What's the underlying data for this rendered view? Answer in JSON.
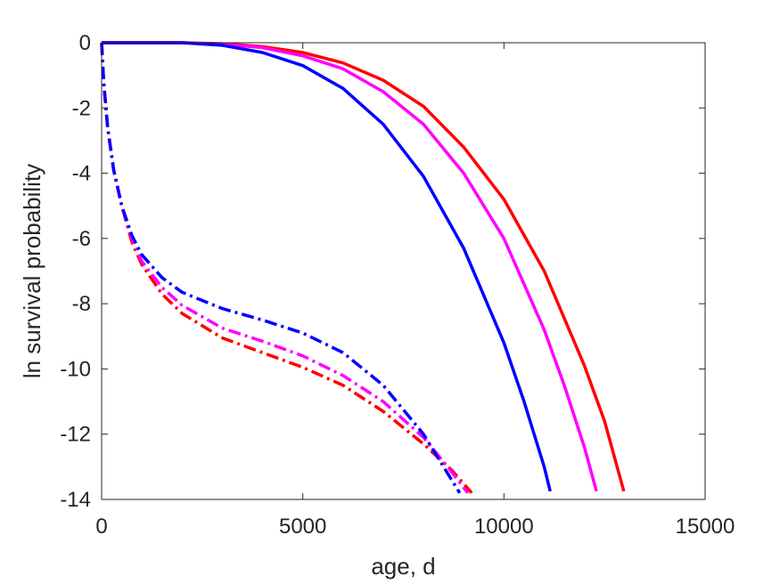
{
  "chart_data": {
    "type": "line",
    "title": "",
    "xlabel": "age, d",
    "ylabel": "ln survival probability",
    "xlim": [
      0,
      15000
    ],
    "ylim": [
      -14,
      0
    ],
    "xticks": [
      0,
      5000,
      10000,
      15000
    ],
    "yticks": [
      0,
      -2,
      -4,
      -6,
      -8,
      -10,
      -12,
      -14
    ],
    "x_tick_labels": [
      "0",
      "5000",
      "10000",
      "15000"
    ],
    "y_tick_labels": [
      "0",
      "-2",
      "-4",
      "-6",
      "-8",
      "-10",
      "-12",
      "-14"
    ],
    "grid": false,
    "legend": "none",
    "series": [
      {
        "color": "#ff0000",
        "style": "solid",
        "points": [
          [
            0,
            0
          ],
          [
            1000,
            0
          ],
          [
            2000,
            0
          ],
          [
            3000,
            -0.03
          ],
          [
            4000,
            -0.12
          ],
          [
            5000,
            -0.3
          ],
          [
            6000,
            -0.62
          ],
          [
            7000,
            -1.15
          ],
          [
            8000,
            -1.95
          ],
          [
            9000,
            -3.2
          ],
          [
            10000,
            -4.8
          ],
          [
            11000,
            -7.0
          ],
          [
            12000,
            -9.9
          ],
          [
            12500,
            -11.6
          ],
          [
            12980,
            -13.75
          ]
        ]
      },
      {
        "color": "#ff00ff",
        "style": "solid",
        "points": [
          [
            0,
            0
          ],
          [
            1000,
            0
          ],
          [
            2000,
            0
          ],
          [
            3000,
            -0.04
          ],
          [
            4000,
            -0.15
          ],
          [
            5000,
            -0.4
          ],
          [
            6000,
            -0.8
          ],
          [
            7000,
            -1.5
          ],
          [
            8000,
            -2.5
          ],
          [
            9000,
            -4.0
          ],
          [
            10000,
            -6.0
          ],
          [
            11000,
            -8.8
          ],
          [
            11500,
            -10.5
          ],
          [
            12000,
            -12.4
          ],
          [
            12300,
            -13.75
          ]
        ]
      },
      {
        "color": "#0000ff",
        "style": "solid",
        "points": [
          [
            0,
            0
          ],
          [
            1000,
            0
          ],
          [
            2000,
            0
          ],
          [
            3000,
            -0.08
          ],
          [
            4000,
            -0.3
          ],
          [
            5000,
            -0.7
          ],
          [
            6000,
            -1.4
          ],
          [
            7000,
            -2.5
          ],
          [
            8000,
            -4.1
          ],
          [
            9000,
            -6.3
          ],
          [
            10000,
            -9.2
          ],
          [
            10500,
            -11.0
          ],
          [
            11000,
            -13.0
          ],
          [
            11150,
            -13.75
          ]
        ]
      },
      {
        "color": "#ff0000",
        "style": "dashdot",
        "points": [
          [
            0,
            0
          ],
          [
            50,
            -1.2
          ],
          [
            150,
            -2.6
          ],
          [
            300,
            -3.9
          ],
          [
            500,
            -5.0
          ],
          [
            750,
            -6.1
          ],
          [
            1000,
            -6.8
          ],
          [
            1500,
            -7.7
          ],
          [
            2000,
            -8.3
          ],
          [
            3000,
            -9.05
          ],
          [
            4000,
            -9.5
          ],
          [
            5000,
            -9.95
          ],
          [
            6000,
            -10.5
          ],
          [
            7000,
            -11.3
          ],
          [
            8000,
            -12.3
          ],
          [
            8700,
            -13.1
          ],
          [
            9200,
            -13.8
          ]
        ]
      },
      {
        "color": "#ff00ff",
        "style": "dashdot",
        "points": [
          [
            0,
            0
          ],
          [
            50,
            -1.2
          ],
          [
            150,
            -2.6
          ],
          [
            300,
            -3.9
          ],
          [
            500,
            -5.0
          ],
          [
            750,
            -6.0
          ],
          [
            1000,
            -6.7
          ],
          [
            1500,
            -7.5
          ],
          [
            2000,
            -8.05
          ],
          [
            3000,
            -8.75
          ],
          [
            4000,
            -9.15
          ],
          [
            5000,
            -9.6
          ],
          [
            6000,
            -10.2
          ],
          [
            7000,
            -11.0
          ],
          [
            8000,
            -12.1
          ],
          [
            8600,
            -13.0
          ],
          [
            9100,
            -13.8
          ]
        ]
      },
      {
        "color": "#0000ff",
        "style": "dashdot",
        "points": [
          [
            0,
            0
          ],
          [
            50,
            -1.2
          ],
          [
            150,
            -2.6
          ],
          [
            300,
            -3.9
          ],
          [
            500,
            -5.0
          ],
          [
            750,
            -5.9
          ],
          [
            1000,
            -6.5
          ],
          [
            1500,
            -7.2
          ],
          [
            2000,
            -7.65
          ],
          [
            3000,
            -8.15
          ],
          [
            4000,
            -8.5
          ],
          [
            5000,
            -8.9
          ],
          [
            6000,
            -9.5
          ],
          [
            7000,
            -10.5
          ],
          [
            8000,
            -12.0
          ],
          [
            8500,
            -13.0
          ],
          [
            8900,
            -13.8
          ]
        ]
      }
    ]
  }
}
